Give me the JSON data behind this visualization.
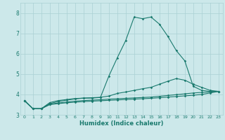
{
  "x": [
    0,
    1,
    2,
    3,
    4,
    5,
    6,
    7,
    8,
    9,
    10,
    11,
    12,
    13,
    14,
    15,
    16,
    17,
    18,
    19,
    20,
    21,
    22,
    23
  ],
  "line1": [
    3.7,
    3.3,
    3.3,
    3.6,
    3.7,
    3.75,
    3.8,
    3.82,
    3.82,
    3.85,
    4.9,
    5.8,
    6.65,
    7.8,
    7.72,
    7.8,
    7.45,
    6.85,
    6.15,
    5.65,
    4.4,
    4.2,
    4.15,
    4.15
  ],
  "line2": [
    3.7,
    3.3,
    3.3,
    3.55,
    3.65,
    3.72,
    3.78,
    3.82,
    3.84,
    3.86,
    3.92,
    4.05,
    4.12,
    4.2,
    4.28,
    4.35,
    4.5,
    4.65,
    4.78,
    4.7,
    4.5,
    4.35,
    4.2,
    4.15
  ],
  "line3": [
    3.7,
    3.3,
    3.3,
    3.52,
    3.58,
    3.63,
    3.67,
    3.7,
    3.72,
    3.74,
    3.77,
    3.79,
    3.81,
    3.83,
    3.85,
    3.87,
    3.91,
    3.95,
    3.99,
    4.03,
    4.07,
    4.1,
    4.12,
    4.15
  ],
  "line4": [
    3.7,
    3.3,
    3.3,
    3.5,
    3.55,
    3.59,
    3.62,
    3.65,
    3.67,
    3.69,
    3.71,
    3.73,
    3.75,
    3.77,
    3.79,
    3.81,
    3.84,
    3.87,
    3.9,
    3.93,
    3.96,
    4.0,
    4.07,
    4.15
  ],
  "line_color": "#1a7a6e",
  "bg_color": "#cce8ea",
  "grid_color": "#aad0d4",
  "xlabel": "Humidex (Indice chaleur)",
  "ylim": [
    3.0,
    8.5
  ],
  "xlim": [
    -0.5,
    23.5
  ],
  "yticks": [
    3,
    4,
    5,
    6,
    7,
    8
  ],
  "xticks": [
    0,
    1,
    2,
    3,
    4,
    5,
    6,
    7,
    8,
    9,
    10,
    11,
    12,
    13,
    14,
    15,
    16,
    17,
    18,
    19,
    20,
    21,
    22,
    23
  ]
}
